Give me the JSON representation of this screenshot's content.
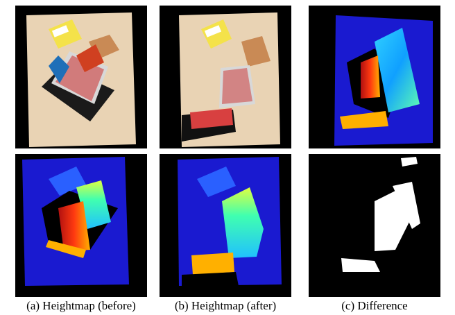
{
  "captions": [
    "(a) Heightmap (before)",
    "(b) Heightmap (after)",
    "(c) Difference"
  ]
}
